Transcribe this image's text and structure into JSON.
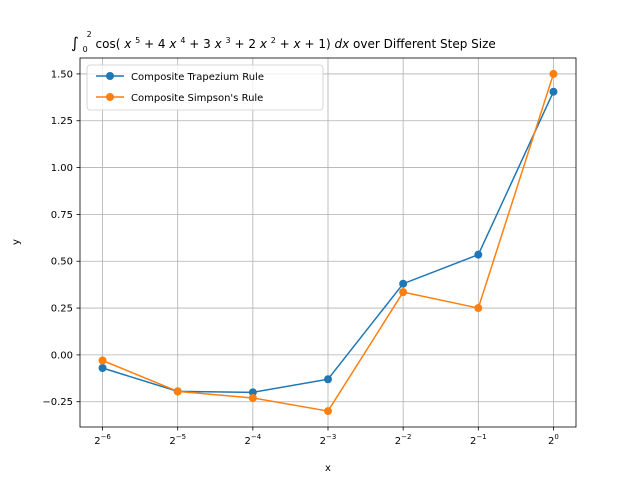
{
  "chart_data": {
    "type": "line",
    "title_parts": {
      "integral": "∫",
      "lower": "0",
      "upper": "2",
      "func_open": "cos(",
      "x1": "x",
      "e1": "5",
      "p1": " + 4",
      "x2": "x",
      "e2": "4",
      "p2": " + 3",
      "x3": "x",
      "e3": "3",
      "p3": " + 2",
      "x4": "x",
      "e4": "2",
      "p4": " + ",
      "x5": "x",
      "p5": " + 1)",
      "dx": "dx",
      "suffix": " over Different Step Size"
    },
    "xlabel": "x",
    "ylabel": "y",
    "x_scale": "log2",
    "x": [
      0.015625,
      0.03125,
      0.0625,
      0.125,
      0.25,
      0.5,
      1
    ],
    "x_tick_labels": [
      {
        "base": "2",
        "exp": "−6"
      },
      {
        "base": "2",
        "exp": "−5"
      },
      {
        "base": "2",
        "exp": "−4"
      },
      {
        "base": "2",
        "exp": "−3"
      },
      {
        "base": "2",
        "exp": "−2"
      },
      {
        "base": "2",
        "exp": "−1"
      },
      {
        "base": "2",
        "exp": "0"
      }
    ],
    "y_ticks": [
      -0.25,
      0.0,
      0.25,
      0.5,
      0.75,
      1.0,
      1.25,
      1.5
    ],
    "y_tick_labels": [
      "−0.25",
      "0.00",
      "0.25",
      "0.50",
      "0.75",
      "1.00",
      "1.25",
      "1.50"
    ],
    "ylim": [
      -0.385,
      1.585
    ],
    "grid": true,
    "legend_position": "top-left",
    "series": [
      {
        "name": "Composite Trapezium Rule",
        "color": "#1f77b4",
        "values": [
          -0.07,
          -0.195,
          -0.2,
          -0.13,
          0.38,
          0.535,
          1.405
        ]
      },
      {
        "name": "Composite Simpson's Rule",
        "color": "#ff7f0e",
        "values": [
          -0.03,
          -0.195,
          -0.23,
          -0.3,
          0.335,
          0.25,
          1.5
        ]
      }
    ]
  }
}
